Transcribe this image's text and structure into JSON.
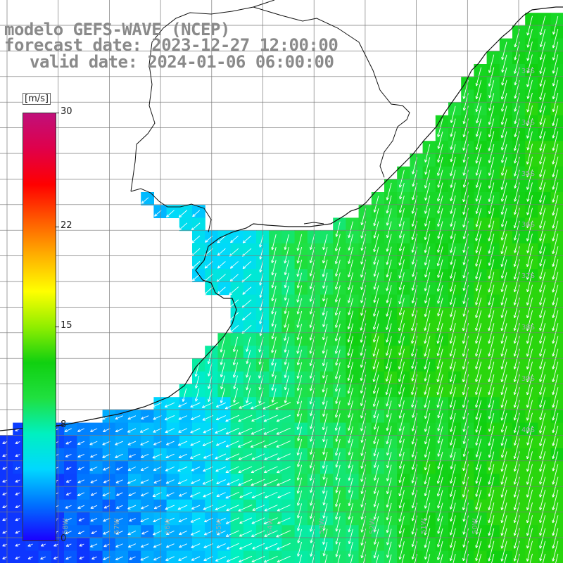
{
  "header": {
    "line1": "modelo GEFS-WAVE (NCEP)",
    "line2": "forecast date: 2023-12-27 12:00:00",
    "line3": "valid date: 2024-01-06 06:00:00"
  },
  "colorbar": {
    "unit": "[m/s]",
    "ticks": [
      {
        "label": "30",
        "value": 30
      },
      {
        "label": "22",
        "value": 22
      },
      {
        "label": "15",
        "value": 15
      },
      {
        "label": "8",
        "value": 8
      },
      {
        "label": "0",
        "value": 0
      }
    ],
    "stops": [
      "#1a00ff",
      "#0070ff",
      "#00d8ff",
      "#00f0c0",
      "#20e040",
      "#10d010",
      "#90ee00",
      "#ffff00",
      "#ffb000",
      "#ff5a00",
      "#ff0000",
      "#e0004a",
      "#c0107a"
    ]
  },
  "lat_labels": [
    "33S",
    "34S",
    "35S",
    "36S",
    "37S",
    "38S",
    "39S",
    "40S"
  ],
  "lon_labels": [
    "58W",
    "57W",
    "56W",
    "55W",
    "54W",
    "53W",
    "52W",
    "51W",
    "50W"
  ],
  "colors": {
    "land": "#ffffff",
    "coast": "#111111",
    "grid": "#7a7a7a",
    "arrow": "#ffffff",
    "title": "#8a8a8a"
  }
}
